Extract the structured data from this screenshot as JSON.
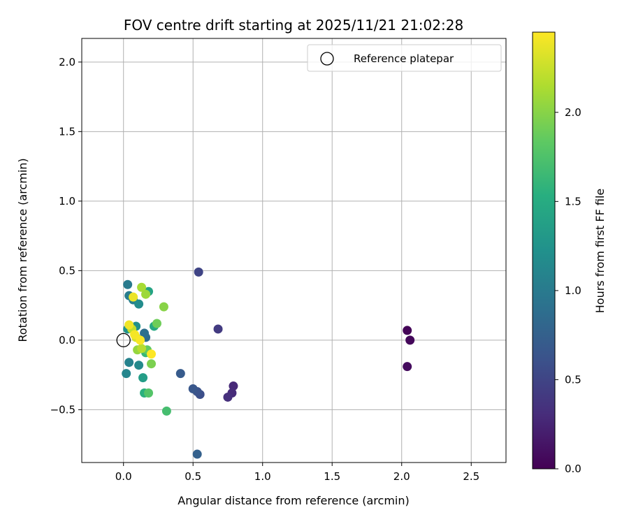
{
  "chart_data": {
    "type": "scatter",
    "title": "FOV centre drift starting at 2025/11/21 21:02:28",
    "xlabel": "Angular distance from reference (arcmin)",
    "ylabel": "Rotation from reference (arcmin)",
    "xlim": [
      -0.3,
      2.75
    ],
    "ylim": [
      -0.88,
      2.17
    ],
    "xticks": [
      0.0,
      0.5,
      1.0,
      1.5,
      2.0,
      2.5
    ],
    "xtick_labels": [
      "0.0",
      "0.5",
      "1.0",
      "1.5",
      "2.0",
      "2.5"
    ],
    "yticks": [
      -0.5,
      0.0,
      0.5,
      1.0,
      1.5,
      2.0
    ],
    "ytick_labels": [
      "−0.5",
      "0.0",
      "0.5",
      "1.0",
      "1.5",
      "2.0"
    ],
    "grid": true,
    "legend": {
      "position": "upper-right",
      "entries": [
        "Reference platepar"
      ]
    },
    "reference_point": {
      "x": 0.0,
      "y": 0.0,
      "marker": "hollow-circle",
      "color": "#000000"
    },
    "colorbar": {
      "label": "Hours from first FF file",
      "colormap": "viridis",
      "range": [
        0.0,
        2.45
      ],
      "ticks": [
        0.0,
        0.5,
        1.0,
        1.5,
        2.0
      ],
      "tick_labels": [
        "0.0",
        "0.5",
        "1.0",
        "1.5",
        "2.0"
      ]
    },
    "points": [
      {
        "x": 2.04,
        "y": 0.07,
        "c": 0.02
      },
      {
        "x": 2.06,
        "y": 0.0,
        "c": 0.05
      },
      {
        "x": 2.04,
        "y": -0.19,
        "c": 0.08
      },
      {
        "x": 0.79,
        "y": -0.33,
        "c": 0.28
      },
      {
        "x": 0.78,
        "y": -0.38,
        "c": 0.3
      },
      {
        "x": 0.75,
        "y": -0.41,
        "c": 0.33
      },
      {
        "x": 0.68,
        "y": 0.08,
        "c": 0.42
      },
      {
        "x": 0.54,
        "y": 0.49,
        "c": 0.5
      },
      {
        "x": 0.55,
        "y": -0.39,
        "c": 0.58
      },
      {
        "x": 0.53,
        "y": -0.37,
        "c": 0.62
      },
      {
        "x": 0.5,
        "y": -0.35,
        "c": 0.66
      },
      {
        "x": 0.41,
        "y": -0.24,
        "c": 0.7
      },
      {
        "x": 0.53,
        "y": -0.82,
        "c": 0.75
      },
      {
        "x": 0.16,
        "y": 0.02,
        "c": 0.85
      },
      {
        "x": 0.15,
        "y": 0.05,
        "c": 0.9
      },
      {
        "x": 0.03,
        "y": 0.4,
        "c": 1.0
      },
      {
        "x": 0.04,
        "y": 0.32,
        "c": 1.02
      },
      {
        "x": 0.07,
        "y": 0.29,
        "c": 1.05
      },
      {
        "x": 0.04,
        "y": -0.16,
        "c": 1.08
      },
      {
        "x": 0.02,
        "y": -0.24,
        "c": 1.12
      },
      {
        "x": 0.11,
        "y": -0.18,
        "c": 1.15
      },
      {
        "x": 0.11,
        "y": 0.26,
        "c": 1.18
      },
      {
        "x": 0.09,
        "y": 0.1,
        "c": 1.22
      },
      {
        "x": 0.03,
        "y": 0.08,
        "c": 1.25
      },
      {
        "x": 0.14,
        "y": -0.27,
        "c": 1.35
      },
      {
        "x": 0.18,
        "y": 0.35,
        "c": 1.42
      },
      {
        "x": 0.22,
        "y": 0.1,
        "c": 1.48
      },
      {
        "x": 0.15,
        "y": -0.38,
        "c": 1.55
      },
      {
        "x": 0.16,
        "y": -0.09,
        "c": 1.62
      },
      {
        "x": 0.31,
        "y": -0.51,
        "c": 1.7
      },
      {
        "x": 0.18,
        "y": -0.38,
        "c": 1.78
      },
      {
        "x": 0.17,
        "y": -0.07,
        "c": 1.85
      },
      {
        "x": 0.24,
        "y": 0.12,
        "c": 1.9
      },
      {
        "x": 0.2,
        "y": -0.17,
        "c": 1.95
      },
      {
        "x": 0.29,
        "y": 0.24,
        "c": 2.0
      },
      {
        "x": 0.1,
        "y": -0.07,
        "c": 2.05
      },
      {
        "x": 0.16,
        "y": 0.33,
        "c": 2.08
      },
      {
        "x": 0.13,
        "y": 0.38,
        "c": 2.12
      },
      {
        "x": 0.13,
        "y": -0.06,
        "c": 2.18
      },
      {
        "x": 0.06,
        "y": 0.08,
        "c": 2.22
      },
      {
        "x": 0.09,
        "y": 0.02,
        "c": 2.3
      },
      {
        "x": 0.07,
        "y": 0.31,
        "c": 2.38
      },
      {
        "x": 0.04,
        "y": 0.11,
        "c": 2.4
      },
      {
        "x": 0.08,
        "y": 0.04,
        "c": 2.42
      },
      {
        "x": 0.12,
        "y": 0.0,
        "c": 2.43
      },
      {
        "x": 0.2,
        "y": -0.1,
        "c": 2.45
      }
    ]
  }
}
